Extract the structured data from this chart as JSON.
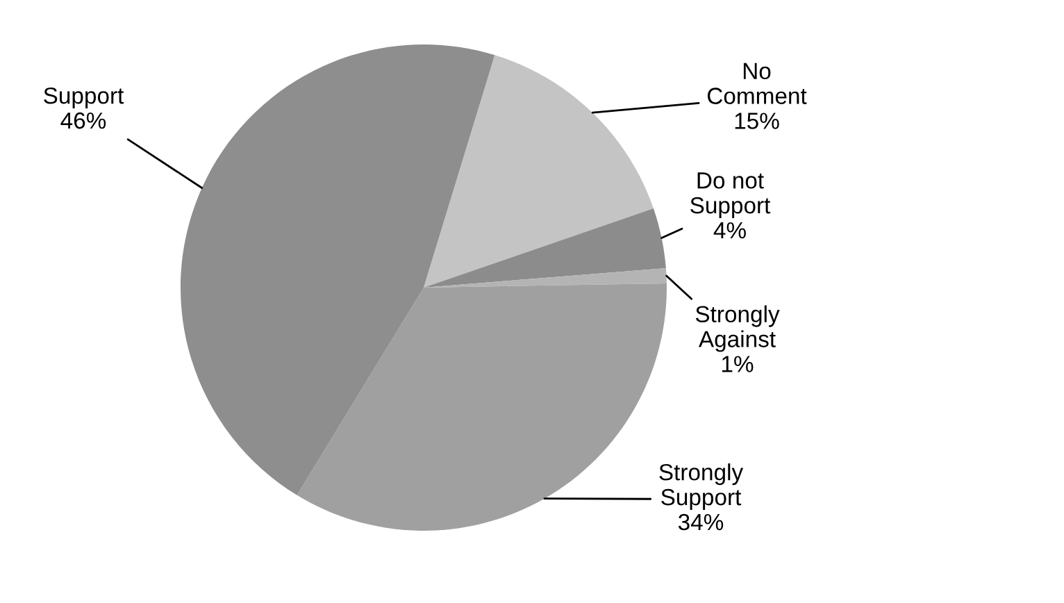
{
  "chart_data": {
    "type": "pie",
    "categories": [
      "No\nComment",
      "Do not\nSupport",
      "Strongly\nAgainst",
      "Strongly\nSupport",
      "Support"
    ],
    "values": [
      15,
      4,
      1,
      34,
      46
    ],
    "value_labels": [
      "15%",
      "4%",
      "1%",
      "34%",
      "46%"
    ],
    "colors": [
      "#c4c4c4",
      "#8c8c8c",
      "#b4b4b4",
      "#a0a0a0",
      "#8e8e8e"
    ]
  }
}
